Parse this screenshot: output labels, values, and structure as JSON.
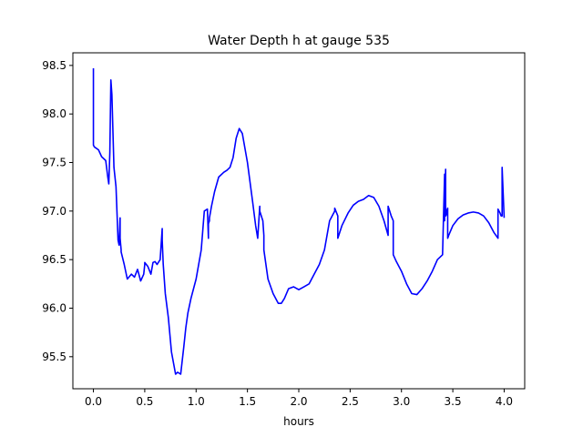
{
  "chart_data": {
    "type": "line",
    "title": "Water Depth h at gauge 535",
    "xlabel": "hours",
    "ylabel": "",
    "xlim": [
      -0.2,
      4.2
    ],
    "ylim": [
      95.17,
      98.63
    ],
    "xticks": [
      0.0,
      0.5,
      1.0,
      1.5,
      2.0,
      2.5,
      3.0,
      3.5,
      4.0
    ],
    "xtick_labels": [
      "0.0",
      "0.5",
      "1.0",
      "1.5",
      "2.0",
      "2.5",
      "3.0",
      "3.5",
      "4.0"
    ],
    "yticks": [
      95.5,
      96.0,
      96.5,
      97.0,
      97.5,
      98.0,
      98.5
    ],
    "ytick_labels": [
      "95.5",
      "96.0",
      "96.5",
      "97.0",
      "97.5",
      "98.0",
      "98.5"
    ],
    "grid": false,
    "legend": "none",
    "series": [
      {
        "color": "#0000ff",
        "x": [
          0.0,
          0.0,
          0.0,
          0.01,
          0.05,
          0.08,
          0.1,
          0.12,
          0.14,
          0.15,
          0.16,
          0.17,
          0.18,
          0.2,
          0.22,
          0.24,
          0.25,
          0.26,
          0.26,
          0.27,
          0.27,
          0.3,
          0.33,
          0.37,
          0.4,
          0.43,
          0.46,
          0.49,
          0.5,
          0.5,
          0.53,
          0.56,
          0.58,
          0.6,
          0.62,
          0.65,
          0.67,
          0.67,
          0.68,
          0.7,
          0.73,
          0.76,
          0.8,
          0.82,
          0.85,
          0.88,
          0.9,
          0.92,
          0.95,
          1.0,
          1.05,
          1.08,
          1.11,
          1.12,
          1.12,
          1.13,
          1.13,
          1.15,
          1.18,
          1.22,
          1.27,
          1.3,
          1.33,
          1.36,
          1.39,
          1.42,
          1.45,
          1.5,
          1.55,
          1.58,
          1.6,
          1.62,
          1.62,
          1.65,
          1.66,
          1.66,
          1.7,
          1.75,
          1.8,
          1.83,
          1.86,
          1.9,
          1.95,
          2.0,
          2.05,
          2.1,
          2.15,
          2.2,
          2.25,
          2.3,
          2.35,
          2.35,
          2.38,
          2.38,
          2.42,
          2.48,
          2.53,
          2.58,
          2.63,
          2.68,
          2.73,
          2.78,
          2.83,
          2.87,
          2.87,
          2.9,
          2.92,
          2.92,
          2.95,
          3.0,
          3.05,
          3.1,
          3.15,
          3.2,
          3.25,
          3.3,
          3.35,
          3.4,
          3.42,
          3.42,
          3.43,
          3.43,
          3.44,
          3.44,
          3.45,
          3.45,
          3.46,
          3.5,
          3.55,
          3.6,
          3.65,
          3.7,
          3.75,
          3.8,
          3.85,
          3.9,
          3.94,
          3.94,
          3.96,
          3.97,
          3.98,
          3.98,
          4.0
        ],
        "y": [
          98.47,
          98.0,
          97.68,
          97.66,
          97.63,
          97.56,
          97.54,
          97.52,
          97.35,
          97.28,
          97.6,
          98.35,
          98.2,
          97.45,
          97.25,
          96.7,
          96.65,
          96.93,
          96.72,
          96.6,
          96.58,
          96.45,
          96.3,
          96.35,
          96.32,
          96.4,
          96.28,
          96.35,
          96.45,
          96.47,
          96.43,
          96.35,
          96.47,
          96.48,
          96.45,
          96.5,
          96.82,
          96.7,
          96.45,
          96.15,
          95.9,
          95.55,
          95.32,
          95.34,
          95.32,
          95.6,
          95.8,
          95.95,
          96.1,
          96.3,
          96.6,
          97.0,
          97.02,
          96.72,
          96.87,
          96.9,
          96.93,
          97.05,
          97.2,
          97.35,
          97.4,
          97.42,
          97.45,
          97.55,
          97.75,
          97.85,
          97.8,
          97.5,
          97.1,
          96.85,
          96.72,
          97.05,
          97.0,
          96.9,
          96.75,
          96.6,
          96.3,
          96.15,
          96.05,
          96.05,
          96.1,
          96.2,
          96.22,
          96.19,
          96.22,
          96.25,
          96.35,
          96.45,
          96.6,
          96.9,
          97.0,
          97.03,
          96.95,
          96.72,
          96.85,
          96.98,
          97.06,
          97.1,
          97.12,
          97.16,
          97.14,
          97.05,
          96.9,
          96.75,
          97.05,
          96.95,
          96.9,
          96.55,
          96.48,
          96.38,
          96.25,
          96.15,
          96.14,
          96.2,
          96.28,
          96.38,
          96.5,
          96.55,
          97.38,
          96.9,
          97.43,
          96.95,
          96.97,
          97.0,
          97.03,
          96.72,
          96.75,
          96.85,
          96.92,
          96.96,
          96.98,
          96.99,
          96.98,
          96.95,
          96.88,
          96.78,
          96.72,
          97.02,
          96.98,
          96.95,
          96.95,
          97.45,
          96.93
        ]
      }
    ]
  }
}
